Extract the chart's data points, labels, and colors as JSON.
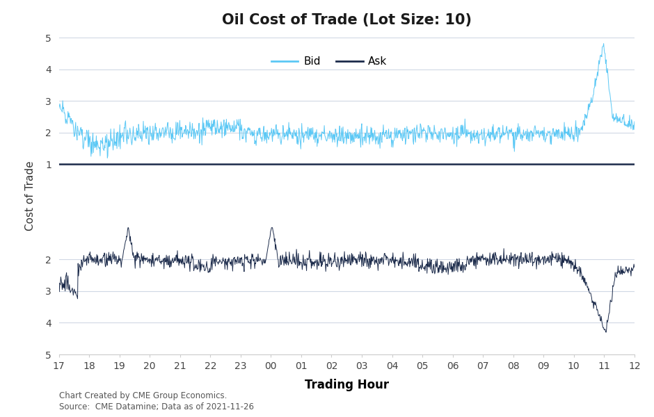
{
  "title": "Oil Cost of Trade (Lot Size: 10)",
  "xlabel": "Trading Hour",
  "ylabel": "Cost of Trade",
  "xtick_labels": [
    "17",
    "18",
    "19",
    "20",
    "21",
    "22",
    "23",
    "00",
    "01",
    "02",
    "03",
    "04",
    "05",
    "06",
    "07",
    "08",
    "09",
    "10",
    "11",
    "12"
  ],
  "bid_color": "#5BC8F5",
  "ask_color": "#1B2A4A",
  "center_line_color": "#1B2A4A",
  "background_color": "#FFFFFF",
  "grid_color": "#D0D8E4",
  "annotation_line1": "Chart Created by CME Group Economics.",
  "annotation_line2": "Source:  CME Datamine; Data as of 2021-11-26",
  "legend_bid": "Bid",
  "legend_ask": "Ask",
  "n_points": 1200
}
